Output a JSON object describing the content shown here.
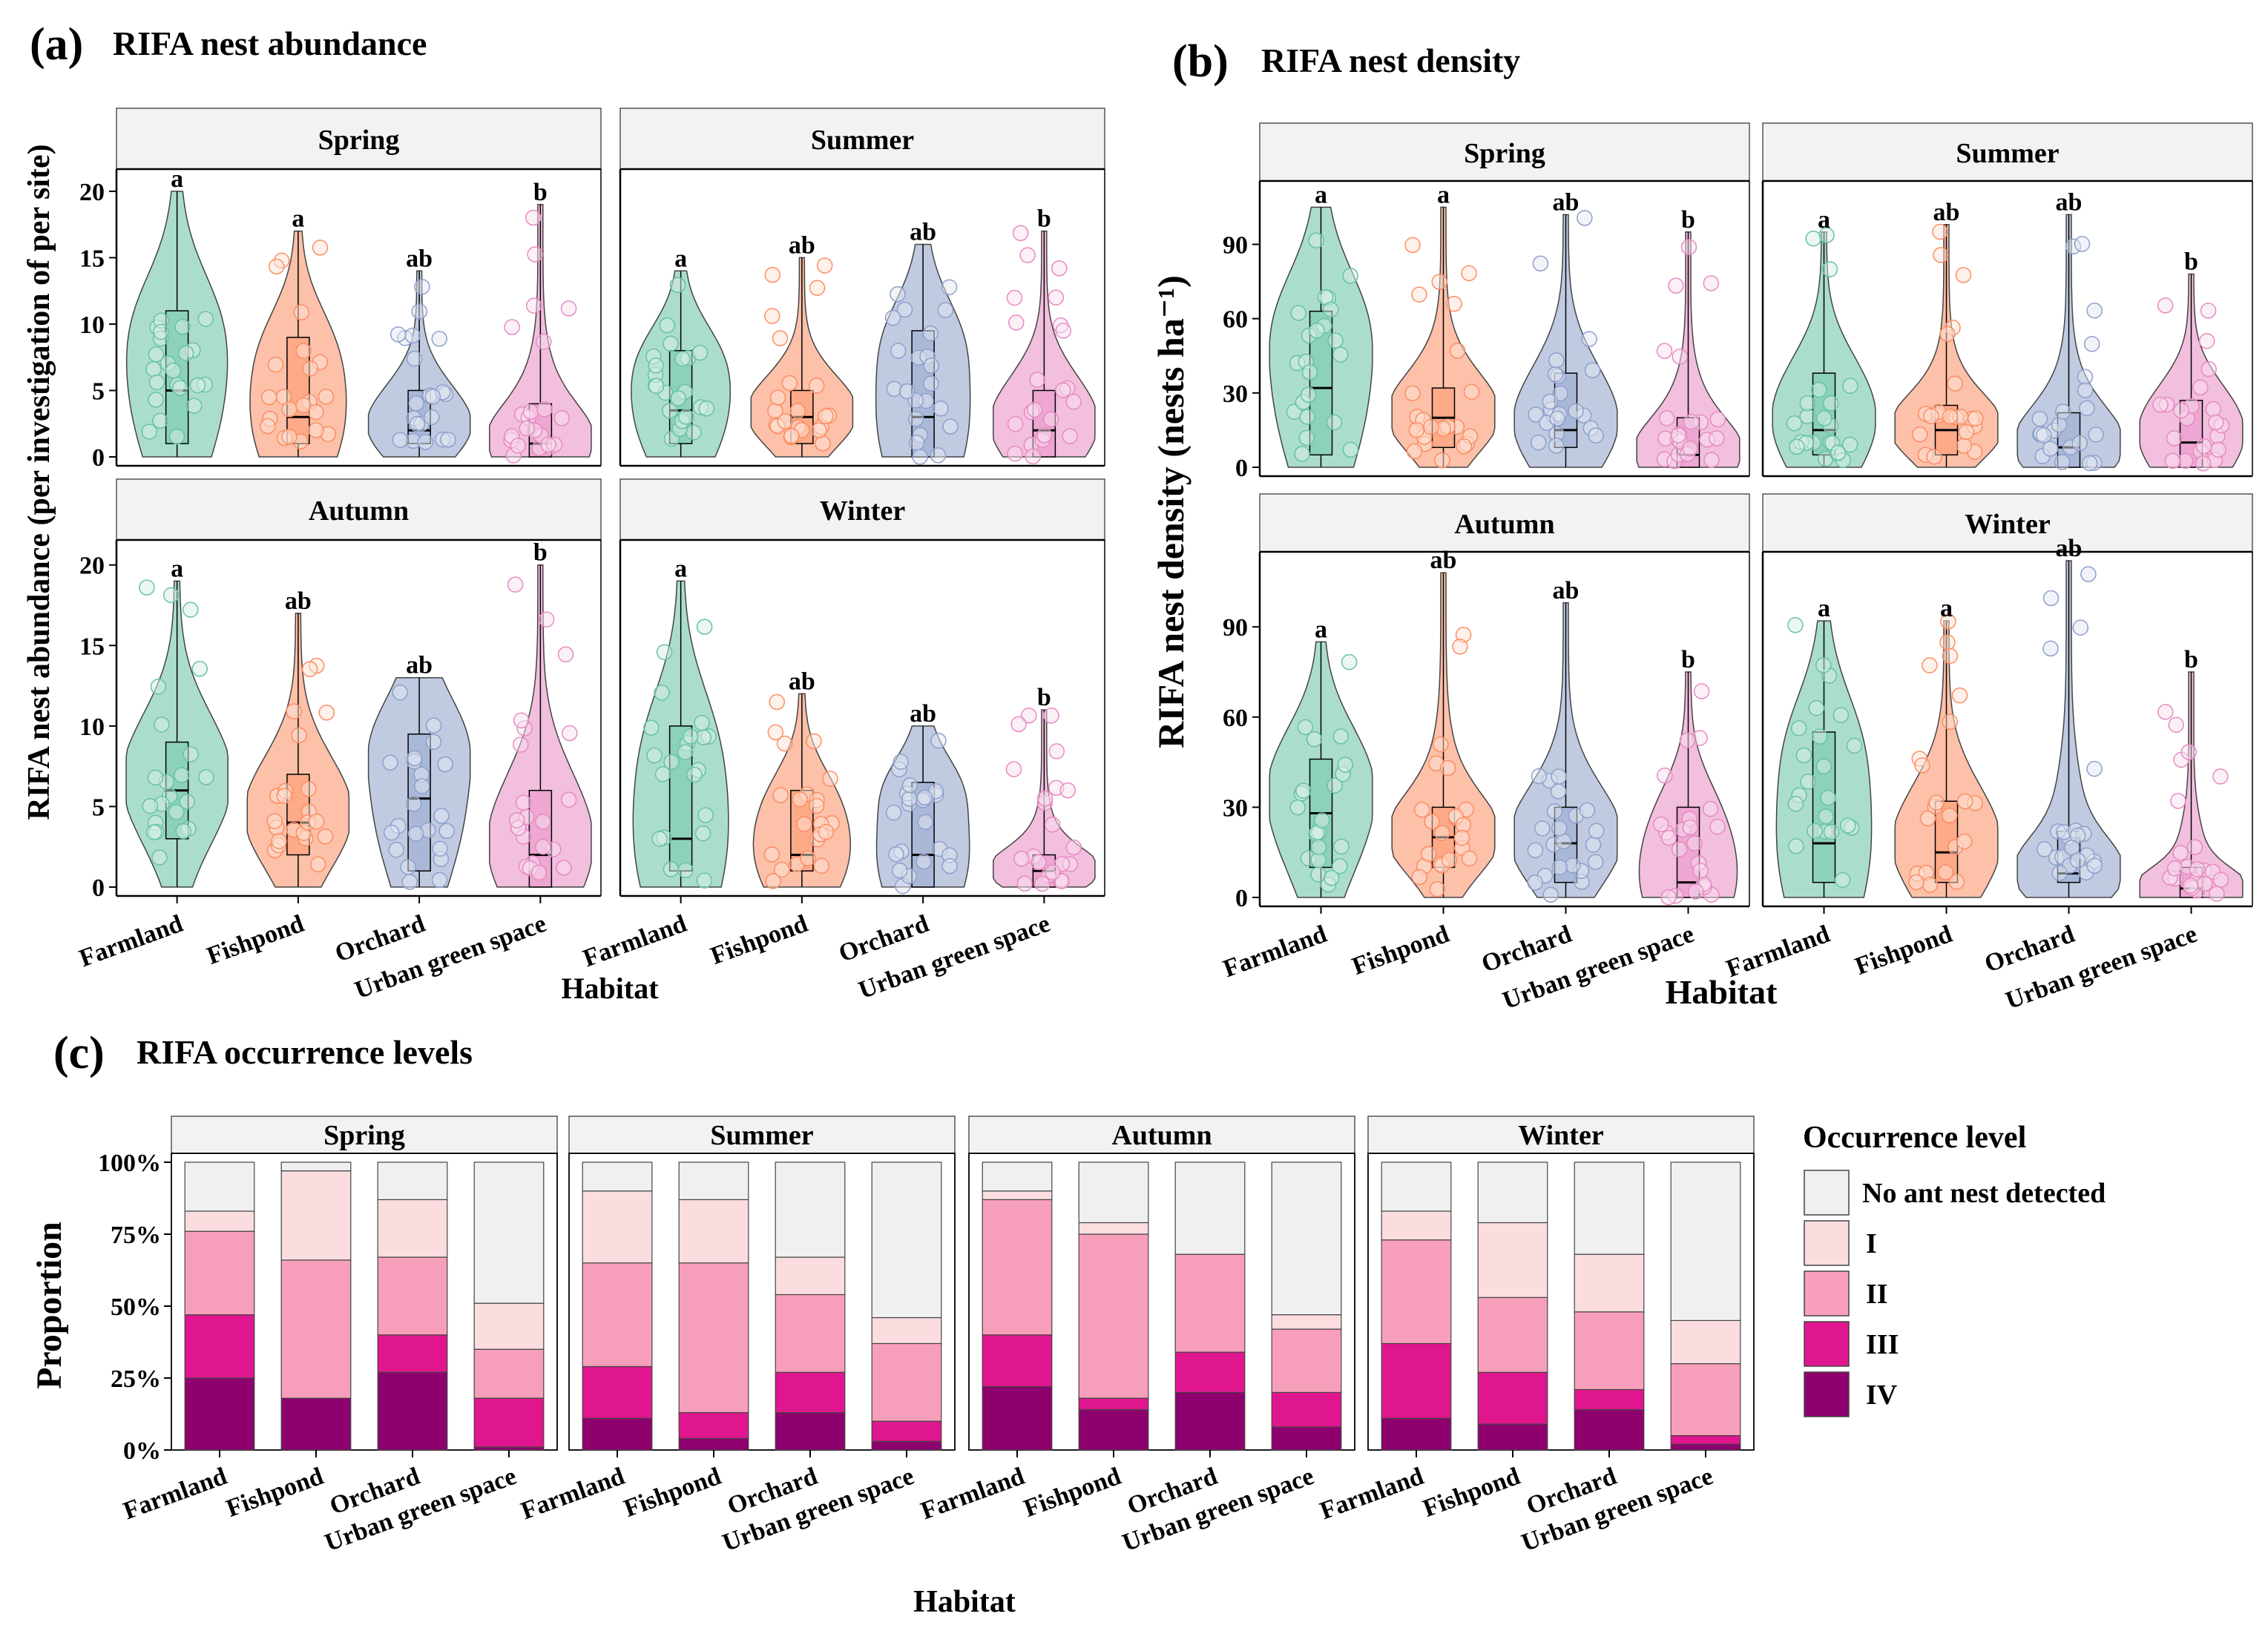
{
  "colors": {
    "Farmland": "#66c2a5",
    "Fishpond": "#fc8d62",
    "Orchard": "#8da0cb",
    "Urban green space": "#e78ac3",
    "panel_header_bg": "#f2f2f2",
    "lvl_none": "#f0f0f0",
    "lvl_I": "#fbdde0",
    "lvl_II": "#f79fba",
    "lvl_III": "#e0168f",
    "lvl_IV": "#8f006f"
  },
  "chart_data": [
    {
      "id": "a",
      "type": "violin",
      "panel_label": "(a)",
      "title": "RIFA nest abundance",
      "ylabel": "RIFA nest abundance (per investigation of per site)",
      "xlabel": "Habitat",
      "ylim": [
        0,
        21
      ],
      "yticks": [
        "0",
        "5",
        "10",
        "15",
        "20"
      ],
      "ytick_values": [
        0,
        5,
        10,
        15,
        20
      ],
      "categories": [
        "Farmland",
        "Fishpond",
        "Orchard",
        "Urban green space"
      ],
      "facets": [
        {
          "season": "Spring",
          "series": [
            {
              "habitat": "Farmland",
              "letter": "a",
              "max": 20,
              "q1": 1,
              "median": 5,
              "q3": 11
            },
            {
              "habitat": "Fishpond",
              "letter": "a",
              "max": 17,
              "q1": 1,
              "median": 3,
              "q3": 9
            },
            {
              "habitat": "Orchard",
              "letter": "ab",
              "max": 14,
              "q1": 1,
              "median": 2,
              "q3": 5
            },
            {
              "habitat": "Urban green space",
              "letter": "b",
              "max": 19,
              "q1": 0,
              "median": 1,
              "q3": 4
            }
          ]
        },
        {
          "season": "Summer",
          "series": [
            {
              "habitat": "Farmland",
              "letter": "a",
              "max": 14,
              "q1": 1,
              "median": 3.5,
              "q3": 8
            },
            {
              "habitat": "Fishpond",
              "letter": "ab",
              "max": 15,
              "q1": 1,
              "median": 3,
              "q3": 5
            },
            {
              "habitat": "Orchard",
              "letter": "ab",
              "max": 16,
              "q1": 0,
              "median": 3,
              "q3": 9.5
            },
            {
              "habitat": "Urban green space",
              "letter": "b",
              "max": 17,
              "q1": 0,
              "median": 2,
              "q3": 5
            }
          ]
        },
        {
          "season": "Autumn",
          "series": [
            {
              "habitat": "Farmland",
              "letter": "a",
              "max": 19,
              "q1": 3,
              "median": 6,
              "q3": 9
            },
            {
              "habitat": "Fishpond",
              "letter": "ab",
              "max": 17,
              "q1": 2,
              "median": 4,
              "q3": 7
            },
            {
              "habitat": "Orchard",
              "letter": "ab",
              "max": 13,
              "q1": 1,
              "median": 5.5,
              "q3": 9.5
            },
            {
              "habitat": "Urban green space",
              "letter": "b",
              "max": 20,
              "q1": 0,
              "median": 2,
              "q3": 6
            }
          ]
        },
        {
          "season": "Winter",
          "series": [
            {
              "habitat": "Farmland",
              "letter": "a",
              "max": 19,
              "q1": 1,
              "median": 3,
              "q3": 10
            },
            {
              "habitat": "Fishpond",
              "letter": "ab",
              "max": 12,
              "q1": 1,
              "median": 2,
              "q3": 6
            },
            {
              "habitat": "Orchard",
              "letter": "ab",
              "max": 10,
              "q1": 0,
              "median": 2,
              "q3": 6.5
            },
            {
              "habitat": "Urban green space",
              "letter": "b",
              "max": 11,
              "q1": 0,
              "median": 1,
              "q3": 2
            }
          ]
        }
      ]
    },
    {
      "id": "b",
      "type": "violin",
      "panel_label": "(b)",
      "title": "RIFA  nest density",
      "ylabel": "RIFA nest density (nests ha⁻¹)",
      "xlabel": "Habitat",
      "ylim": [
        0,
        112
      ],
      "yticks": [
        "0",
        "30",
        "60",
        "90"
      ],
      "ytick_values": [
        0,
        30,
        60,
        90
      ],
      "categories": [
        "Farmland",
        "Fishpond",
        "Orchard",
        "Urban green space"
      ],
      "facets": [
        {
          "season": "Spring",
          "series": [
            {
              "habitat": "Farmland",
              "letter": "a",
              "max": 105,
              "q1": 5,
              "median": 32,
              "q3": 63
            },
            {
              "habitat": "Fishpond",
              "letter": "a",
              "max": 105,
              "q1": 8,
              "median": 20,
              "q3": 32
            },
            {
              "habitat": "Orchard",
              "letter": "ab",
              "max": 102,
              "q1": 8,
              "median": 15,
              "q3": 38
            },
            {
              "habitat": "Urban green space",
              "letter": "b",
              "max": 95,
              "q1": 0,
              "median": 5,
              "q3": 20
            }
          ]
        },
        {
          "season": "Summer",
          "series": [
            {
              "habitat": "Farmland",
              "letter": "a",
              "max": 95,
              "q1": 5,
              "median": 15,
              "q3": 38
            },
            {
              "habitat": "Fishpond",
              "letter": "ab",
              "max": 98,
              "q1": 5,
              "median": 15,
              "q3": 25
            },
            {
              "habitat": "Orchard",
              "letter": "ab",
              "max": 102,
              "q1": 0,
              "median": 8,
              "q3": 22
            },
            {
              "habitat": "Urban green space",
              "letter": "b",
              "max": 78,
              "q1": 0,
              "median": 10,
              "q3": 27
            }
          ]
        },
        {
          "season": "Autumn",
          "series": [
            {
              "habitat": "Farmland",
              "letter": "a",
              "max": 85,
              "q1": 10,
              "median": 28,
              "q3": 46
            },
            {
              "habitat": "Fishpond",
              "letter": "ab",
              "max": 108,
              "q1": 10,
              "median": 20,
              "q3": 30
            },
            {
              "habitat": "Orchard",
              "letter": "ab",
              "max": 98,
              "q1": 5,
              "median": 18,
              "q3": 30
            },
            {
              "habitat": "Urban green space",
              "letter": "b",
              "max": 75,
              "q1": 0,
              "median": 5,
              "q3": 30
            }
          ]
        },
        {
          "season": "Winter",
          "series": [
            {
              "habitat": "Farmland",
              "letter": "a",
              "max": 92,
              "q1": 5,
              "median": 18,
              "q3": 55
            },
            {
              "habitat": "Fishpond",
              "letter": "a",
              "max": 92,
              "q1": 5,
              "median": 15,
              "q3": 32
            },
            {
              "habitat": "Orchard",
              "letter": "ab",
              "max": 112,
              "q1": 5,
              "median": 8,
              "q3": 22
            },
            {
              "habitat": "Urban green space",
              "letter": "b",
              "max": 75,
              "q1": 0,
              "median": 3,
              "q3": 10
            }
          ]
        }
      ]
    },
    {
      "id": "c",
      "type": "bar",
      "stacked": true,
      "panel_label": "(c)",
      "title": "RIFA occurrence levels",
      "ylabel": "Proportion",
      "xlabel": "Habitat",
      "ylim": [
        0,
        100
      ],
      "yticks": [
        "0%",
        "25%",
        "50%",
        "75%",
        "100%"
      ],
      "ytick_values": [
        0,
        25,
        50,
        75,
        100
      ],
      "categories": [
        "Farmland",
        "Fishpond",
        "Orchard",
        "Urban green space"
      ],
      "legend_title": "Occurrence level",
      "legend_position": "right",
      "levels": [
        "No ant nest detected",
        "I",
        "II",
        "III",
        "IV"
      ],
      "stack_order_bottom_up": [
        "IV",
        "III",
        "II",
        "I",
        "No ant nest detected"
      ],
      "facets": [
        {
          "season": "Spring",
          "bars": [
            {
              "habitat": "Farmland",
              "IV": 25,
              "III": 22,
              "II": 29,
              "I": 7,
              "None": 17
            },
            {
              "habitat": "Fishpond",
              "IV": 18,
              "III": 0,
              "II": 48,
              "I": 31,
              "None": 3
            },
            {
              "habitat": "Orchard",
              "IV": 27,
              "III": 13,
              "II": 27,
              "I": 20,
              "None": 13
            },
            {
              "habitat": "Urban green space",
              "IV": 1,
              "III": 17,
              "II": 17,
              "I": 16,
              "None": 49
            }
          ]
        },
        {
          "season": "Summer",
          "bars": [
            {
              "habitat": "Farmland",
              "IV": 11,
              "III": 18,
              "II": 36,
              "I": 25,
              "None": 10
            },
            {
              "habitat": "Fishpond",
              "IV": 4,
              "III": 9,
              "II": 52,
              "I": 22,
              "None": 13
            },
            {
              "habitat": "Orchard",
              "IV": 13,
              "III": 14,
              "II": 27,
              "I": 13,
              "None": 33
            },
            {
              "habitat": "Urban green space",
              "IV": 3,
              "III": 7,
              "II": 27,
              "I": 9,
              "None": 54
            }
          ]
        },
        {
          "season": "Autumn",
          "bars": [
            {
              "habitat": "Farmland",
              "IV": 22,
              "III": 18,
              "II": 47,
              "I": 3,
              "None": 10
            },
            {
              "habitat": "Fishpond",
              "IV": 14,
              "III": 4,
              "II": 57,
              "I": 4,
              "None": 21
            },
            {
              "habitat": "Orchard",
              "IV": 20,
              "III": 14,
              "II": 34,
              "I": 0,
              "None": 32
            },
            {
              "habitat": "Urban green space",
              "IV": 8,
              "III": 12,
              "II": 22,
              "I": 5,
              "None": 53
            }
          ]
        },
        {
          "season": "Winter",
          "bars": [
            {
              "habitat": "Farmland",
              "IV": 11,
              "III": 26,
              "II": 36,
              "I": 10,
              "None": 17
            },
            {
              "habitat": "Fishpond",
              "IV": 9,
              "III": 18,
              "II": 26,
              "I": 26,
              "None": 21
            },
            {
              "habitat": "Orchard",
              "IV": 14,
              "III": 7,
              "II": 27,
              "I": 20,
              "None": 32
            },
            {
              "habitat": "Urban green space",
              "IV": 2,
              "III": 3,
              "II": 25,
              "I": 15,
              "None": 55
            }
          ]
        }
      ]
    }
  ]
}
